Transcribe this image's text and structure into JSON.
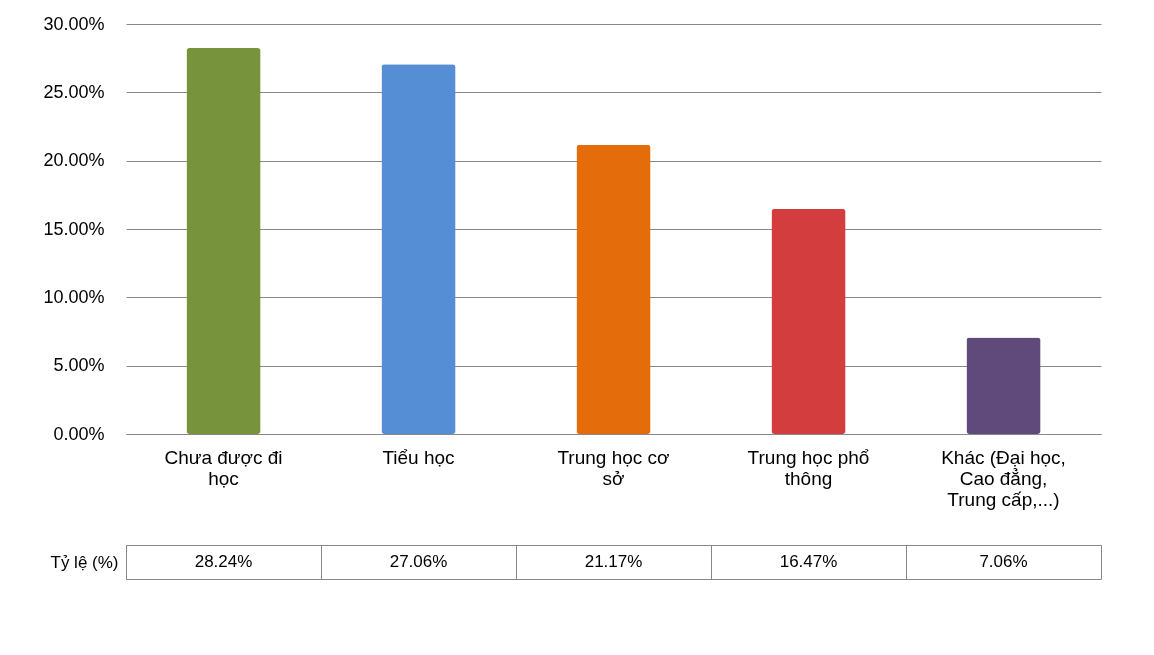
{
  "chart_data": {
    "type": "bar",
    "categories": [
      "Chưa được đi học",
      "Tiểu học",
      "Trung học cơ sở",
      "Trung học phổ thông",
      "Khác (Đại học, Cao đẳng, Trung cấp,...)"
    ],
    "series": [
      {
        "name": "Tỷ lệ (%)",
        "colors": [
          "#77933c",
          "#558ed5",
          "#e46c0a",
          "#d43d3d",
          "#604a7b"
        ],
        "values": [
          28.24,
          27.06,
          21.17,
          16.47,
          7.06
        ],
        "value_labels": [
          "28.24%",
          "27.06%",
          "21.17%",
          "16.47%",
          "7.06%"
        ]
      }
    ],
    "ylim": [
      0,
      30
    ],
    "yticks": [
      {
        "value": 0,
        "label": "0.00%"
      },
      {
        "value": 5,
        "label": "5.00%"
      },
      {
        "value": 10,
        "label": "10.00%"
      },
      {
        "value": 15,
        "label": "15.00%"
      },
      {
        "value": 20,
        "label": "20.00%"
      },
      {
        "value": 25,
        "label": "25.00%"
      },
      {
        "value": 30,
        "label": "30.00%"
      }
    ],
    "grid": "y",
    "legend": false
  }
}
